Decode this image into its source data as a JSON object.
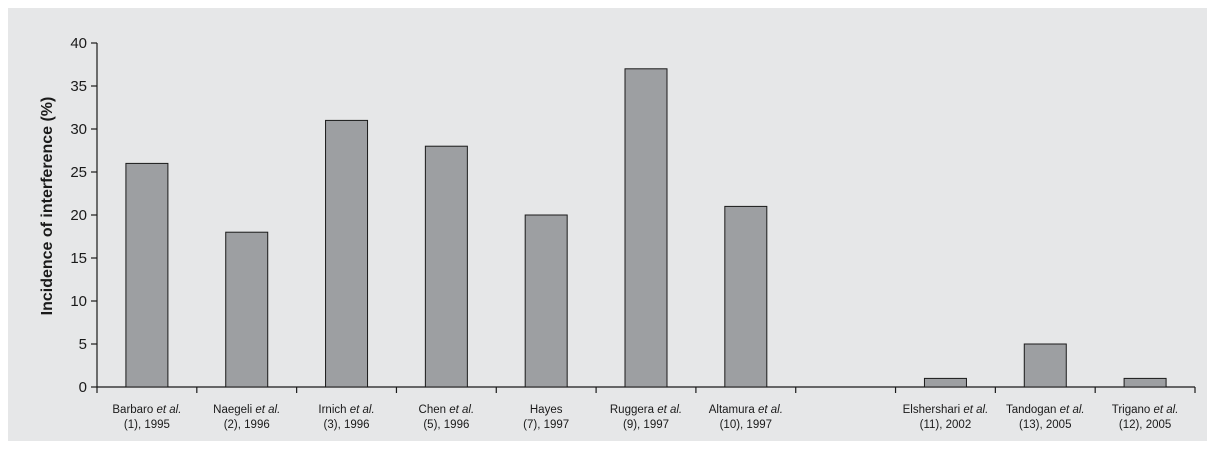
{
  "chart_data": {
    "type": "bar",
    "title": "",
    "ylabel": "Incidence of interference (%)",
    "xlabel": "",
    "ylim": [
      0,
      40
    ],
    "yticks": [
      0,
      5,
      10,
      15,
      20,
      25,
      30,
      35,
      40
    ],
    "grid": false,
    "legend": "none",
    "bar_color": "#9d9fa2",
    "background_color": "#e6e7e8",
    "categories": [
      {
        "author": "Barbaro",
        "etal": true,
        "sub": "(1), 1995",
        "value": 26
      },
      {
        "author": "Naegeli",
        "etal": true,
        "sub": "(2), 1996",
        "value": 18
      },
      {
        "author": "Irnich",
        "etal": true,
        "sub": "(3), 1996",
        "value": 31
      },
      {
        "author": "Chen",
        "etal": true,
        "sub": "(5), 1996",
        "value": 28
      },
      {
        "author": "Hayes",
        "etal": false,
        "sub": "(7), 1997",
        "value": 20
      },
      {
        "author": "Ruggera",
        "etal": true,
        "sub": "(9), 1997",
        "value": 37
      },
      {
        "author": "Altamura",
        "etal": true,
        "sub": "(10), 1997",
        "value": 21
      },
      {
        "author": "",
        "etal": false,
        "sub": "",
        "value": null
      },
      {
        "author": "Elshershari",
        "etal": true,
        "sub": "(11), 2002",
        "value": 1
      },
      {
        "author": "Tandogan",
        "etal": true,
        "sub": "(13), 2005",
        "value": 5
      },
      {
        "author": "Trigano",
        "etal": true,
        "sub": "(12), 2005",
        "value": 1
      }
    ],
    "etal_text": "et al."
  }
}
